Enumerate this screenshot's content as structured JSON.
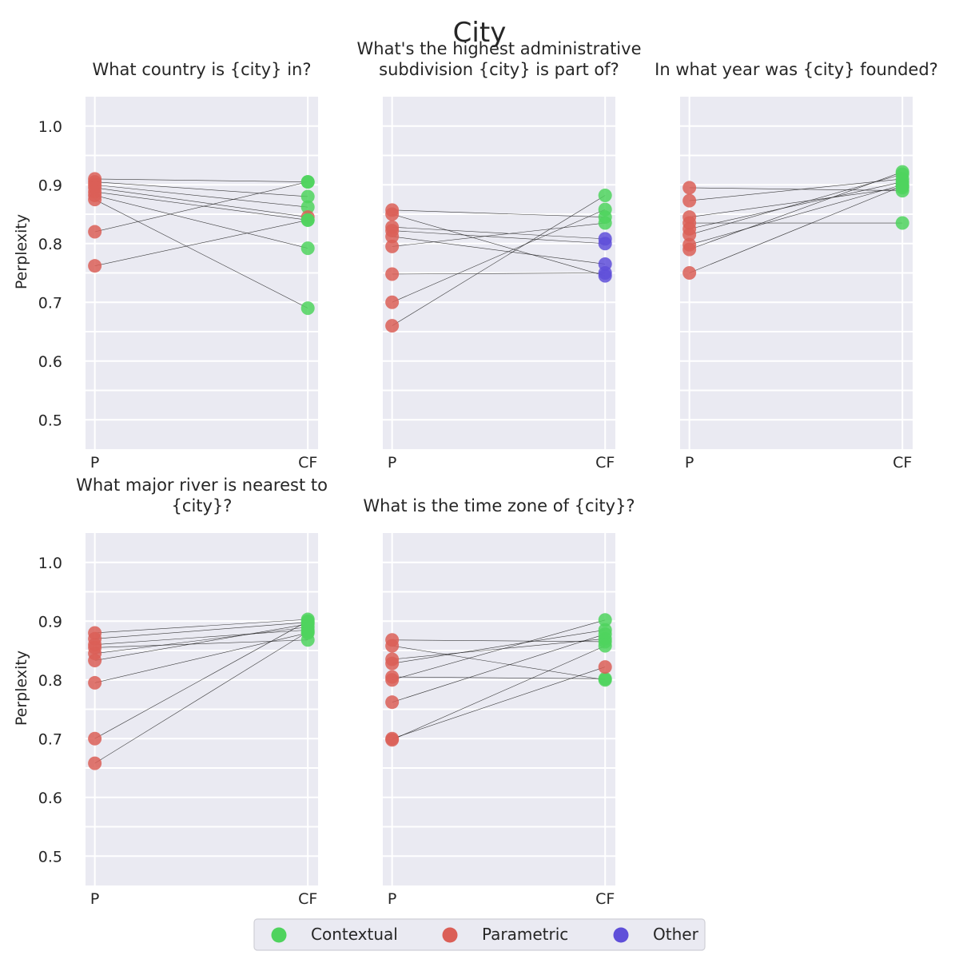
{
  "chart_data": {
    "type": "scatter",
    "title": "City",
    "ylabel": "Perplexity",
    "x_categories": [
      "P",
      "CF"
    ],
    "ylim": [
      0.45,
      1.05
    ],
    "yticks": [
      "1.0",
      "0.9",
      "0.8",
      "0.7",
      "0.6",
      "0.5"
    ],
    "grid": true,
    "legend_placement": "bottom-center",
    "legend": [
      {
        "name": "Contextual",
        "color": "#4fd35e"
      },
      {
        "name": "Parametric",
        "color": "#db5f57"
      },
      {
        "name": "Other",
        "color": "#5f4fd9"
      }
    ],
    "panels": [
      {
        "title": [
          "What country is {city} in?"
        ],
        "pairs": [
          {
            "p": 0.91,
            "p_class": "Parametric",
            "cf": 0.905,
            "cf_class": "Contextual"
          },
          {
            "p": 0.905,
            "p_class": "Parametric",
            "cf": 0.88,
            "cf_class": "Contextual"
          },
          {
            "p": 0.9,
            "p_class": "Parametric",
            "cf": 0.862,
            "cf_class": "Contextual"
          },
          {
            "p": 0.895,
            "p_class": "Parametric",
            "cf": 0.845,
            "cf_class": "Parametric"
          },
          {
            "p": 0.888,
            "p_class": "Parametric",
            "cf": 0.84,
            "cf_class": "Contextual"
          },
          {
            "p": 0.882,
            "p_class": "Parametric",
            "cf": 0.792,
            "cf_class": "Contextual"
          },
          {
            "p": 0.875,
            "p_class": "Parametric",
            "cf": 0.69,
            "cf_class": "Contextual"
          },
          {
            "p": 0.82,
            "p_class": "Parametric",
            "cf": 0.905,
            "cf_class": "Contextual"
          },
          {
            "p": 0.762,
            "p_class": "Parametric",
            "cf": 0.84,
            "cf_class": "Contextual"
          }
        ]
      },
      {
        "title": [
          "What's the highest administrative",
          "subdivision {city} is part of?"
        ],
        "pairs": [
          {
            "p": 0.857,
            "p_class": "Parametric",
            "cf": 0.845,
            "cf_class": "Contextual"
          },
          {
            "p": 0.85,
            "p_class": "Parametric",
            "cf": 0.745,
            "cf_class": "Other"
          },
          {
            "p": 0.828,
            "p_class": "Parametric",
            "cf": 0.808,
            "cf_class": "Other"
          },
          {
            "p": 0.822,
            "p_class": "Parametric",
            "cf": 0.8,
            "cf_class": "Other"
          },
          {
            "p": 0.812,
            "p_class": "Parametric",
            "cf": 0.765,
            "cf_class": "Other"
          },
          {
            "p": 0.795,
            "p_class": "Parametric",
            "cf": 0.835,
            "cf_class": "Contextual"
          },
          {
            "p": 0.748,
            "p_class": "Parametric",
            "cf": 0.75,
            "cf_class": "Other"
          },
          {
            "p": 0.7,
            "p_class": "Parametric",
            "cf": 0.858,
            "cf_class": "Contextual"
          },
          {
            "p": 0.66,
            "p_class": "Parametric",
            "cf": 0.882,
            "cf_class": "Contextual"
          }
        ]
      },
      {
        "title": [
          "In what year was {city} founded?"
        ],
        "pairs": [
          {
            "p": 0.895,
            "p_class": "Parametric",
            "cf": 0.89,
            "cf_class": "Contextual"
          },
          {
            "p": 0.873,
            "p_class": "Parametric",
            "cf": 0.91,
            "cf_class": "Contextual"
          },
          {
            "p": 0.845,
            "p_class": "Parametric",
            "cf": 0.895,
            "cf_class": "Contextual"
          },
          {
            "p": 0.835,
            "p_class": "Parametric",
            "cf": 0.835,
            "cf_class": "Contextual"
          },
          {
            "p": 0.825,
            "p_class": "Parametric",
            "cf": 0.905,
            "cf_class": "Contextual"
          },
          {
            "p": 0.815,
            "p_class": "Parametric",
            "cf": 0.918,
            "cf_class": "Contextual"
          },
          {
            "p": 0.798,
            "p_class": "Parametric",
            "cf": 0.9,
            "cf_class": "Contextual"
          },
          {
            "p": 0.79,
            "p_class": "Parametric",
            "cf": 0.922,
            "cf_class": "Contextual"
          },
          {
            "p": 0.75,
            "p_class": "Parametric",
            "cf": 0.898,
            "cf_class": "Contextual"
          }
        ]
      },
      {
        "title": [
          "What major river is nearest to",
          "{city}?"
        ],
        "pairs": [
          {
            "p": 0.88,
            "p_class": "Parametric",
            "cf": 0.903,
            "cf_class": "Contextual"
          },
          {
            "p": 0.87,
            "p_class": "Parametric",
            "cf": 0.898,
            "cf_class": "Contextual"
          },
          {
            "p": 0.86,
            "p_class": "Parametric",
            "cf": 0.885,
            "cf_class": "Contextual"
          },
          {
            "p": 0.855,
            "p_class": "Parametric",
            "cf": 0.868,
            "cf_class": "Contextual"
          },
          {
            "p": 0.845,
            "p_class": "Parametric",
            "cf": 0.89,
            "cf_class": "Contextual"
          },
          {
            "p": 0.833,
            "p_class": "Parametric",
            "cf": 0.895,
            "cf_class": "Contextual"
          },
          {
            "p": 0.795,
            "p_class": "Parametric",
            "cf": 0.88,
            "cf_class": "Contextual"
          },
          {
            "p": 0.7,
            "p_class": "Parametric",
            "cf": 0.9,
            "cf_class": "Contextual"
          },
          {
            "p": 0.658,
            "p_class": "Parametric",
            "cf": 0.882,
            "cf_class": "Contextual"
          }
        ]
      },
      {
        "title": [
          "What is the time zone of {city}?"
        ],
        "pairs": [
          {
            "p": 0.868,
            "p_class": "Parametric",
            "cf": 0.865,
            "cf_class": "Contextual"
          },
          {
            "p": 0.858,
            "p_class": "Parametric",
            "cf": 0.8,
            "cf_class": "Contextual"
          },
          {
            "p": 0.835,
            "p_class": "Parametric",
            "cf": 0.87,
            "cf_class": "Contextual"
          },
          {
            "p": 0.828,
            "p_class": "Parametric",
            "cf": 0.885,
            "cf_class": "Contextual"
          },
          {
            "p": 0.805,
            "p_class": "Parametric",
            "cf": 0.802,
            "cf_class": "Contextual"
          },
          {
            "p": 0.8,
            "p_class": "Parametric",
            "cf": 0.902,
            "cf_class": "Contextual"
          },
          {
            "p": 0.762,
            "p_class": "Parametric",
            "cf": 0.878,
            "cf_class": "Contextual"
          },
          {
            "p": 0.7,
            "p_class": "Parametric",
            "cf": 0.822,
            "cf_class": "Parametric"
          },
          {
            "p": 0.698,
            "p_class": "Parametric",
            "cf": 0.858,
            "cf_class": "Contextual"
          }
        ]
      }
    ]
  }
}
